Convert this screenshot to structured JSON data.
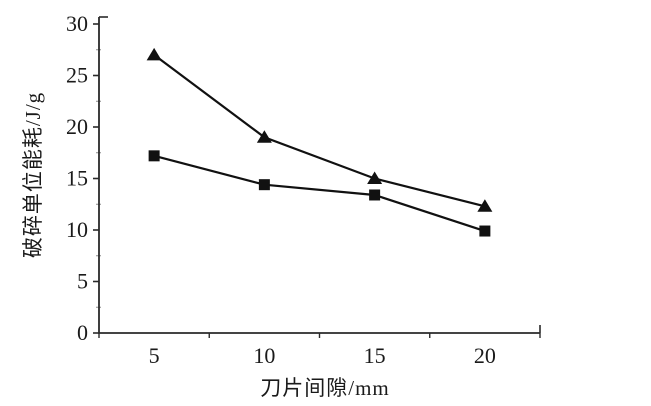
{
  "chart_data": {
    "type": "line",
    "title": "",
    "xlabel": "刀片间隙/mm",
    "ylabel": "破碎单位能耗/J/g",
    "categories": [
      "5",
      "10",
      "15",
      "20"
    ],
    "y_ticks": [
      0,
      5,
      10,
      15,
      20,
      25,
      30
    ],
    "y_minor_step": 2.5,
    "ylim": [
      0,
      30
    ],
    "grid": "off",
    "legend": "none",
    "series": [
      {
        "name": "upper-series-triangle",
        "marker": "triangle",
        "color": "#111111",
        "values": [
          27.0,
          19.0,
          15.0,
          12.3
        ]
      },
      {
        "name": "lower-series-square",
        "marker": "square",
        "color": "#111111",
        "values": [
          17.2,
          14.4,
          13.4,
          9.9
        ]
      }
    ]
  },
  "colors": {
    "axis": "#2a2a2a",
    "minor_tick": "#8a8a8a",
    "text": "#1a1a1a",
    "background": "#ffffff"
  }
}
